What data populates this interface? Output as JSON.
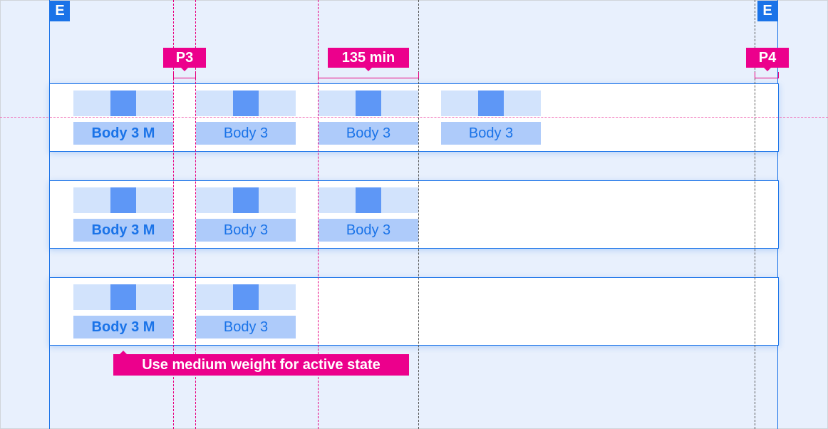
{
  "markers": {
    "edge_left": "E",
    "edge_right": "E",
    "padding_left": "P3",
    "min_width": "135 min",
    "padding_right": "P4"
  },
  "rows": [
    {
      "items": [
        {
          "label": "Body 3 M",
          "active": true
        },
        {
          "label": "Body 3",
          "active": false
        },
        {
          "label": "Body 3",
          "active": false
        },
        {
          "label": "Body 3",
          "active": false
        }
      ]
    },
    {
      "items": [
        {
          "label": "Body 3 M",
          "active": true
        },
        {
          "label": "Body 3",
          "active": false
        },
        {
          "label": "Body 3",
          "active": false
        }
      ]
    },
    {
      "items": [
        {
          "label": "Body 3 M",
          "active": true
        },
        {
          "label": "Body 3",
          "active": false
        }
      ]
    }
  ],
  "note": "Use medium weight for active state",
  "colors": {
    "accent": "#1a73e8",
    "annotation": "#ec008c",
    "icon": "#5e97f6",
    "item_top": "#d2e3fc",
    "item_label_bg": "#aecbfa"
  }
}
